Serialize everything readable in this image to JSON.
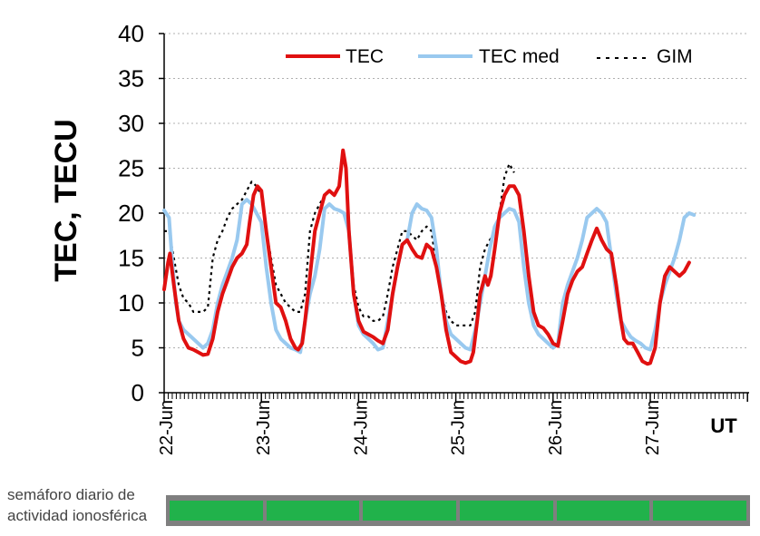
{
  "chart_data": {
    "type": "line",
    "ylabel": "TEC, TECU",
    "xlabel": "UT",
    "ylim": [
      0,
      40
    ],
    "yticks": [
      "0",
      "5",
      "10",
      "15",
      "20",
      "25",
      "30",
      "35",
      "40"
    ],
    "xlim_days": [
      0,
      6
    ],
    "date_labels": [
      "22-Jun",
      "23-Jun",
      "24-Jun",
      "25-Jun",
      "26-Jun",
      "27-Jun"
    ],
    "grid": "horizontal dashed",
    "legend": "top",
    "series": [
      {
        "name": "TEC",
        "color": "#e01010",
        "style": "solid-thick",
        "points": [
          [
            0.0,
            11.5
          ],
          [
            0.04,
            14.5
          ],
          [
            0.06,
            15.5
          ],
          [
            0.1,
            12
          ],
          [
            0.15,
            8
          ],
          [
            0.2,
            6
          ],
          [
            0.25,
            5
          ],
          [
            0.3,
            4.8
          ],
          [
            0.35,
            4.5
          ],
          [
            0.4,
            4.2
          ],
          [
            0.45,
            4.3
          ],
          [
            0.5,
            6
          ],
          [
            0.55,
            9
          ],
          [
            0.6,
            11
          ],
          [
            0.65,
            12.5
          ],
          [
            0.7,
            14
          ],
          [
            0.75,
            15
          ],
          [
            0.8,
            15.5
          ],
          [
            0.85,
            16.5
          ],
          [
            0.88,
            19
          ],
          [
            0.92,
            22
          ],
          [
            0.96,
            23
          ],
          [
            1.0,
            22.5
          ],
          [
            1.05,
            18
          ],
          [
            1.1,
            14
          ],
          [
            1.15,
            10
          ],
          [
            1.2,
            9.5
          ],
          [
            1.25,
            8
          ],
          [
            1.3,
            6
          ],
          [
            1.35,
            5
          ],
          [
            1.38,
            4.8
          ],
          [
            1.42,
            5.5
          ],
          [
            1.45,
            8
          ],
          [
            1.5,
            13
          ],
          [
            1.55,
            18
          ],
          [
            1.6,
            20
          ],
          [
            1.65,
            22
          ],
          [
            1.7,
            22.5
          ],
          [
            1.75,
            22
          ],
          [
            1.8,
            23
          ],
          [
            1.82,
            25
          ],
          [
            1.84,
            27
          ],
          [
            1.87,
            25
          ],
          [
            1.9,
            18
          ],
          [
            1.95,
            11
          ],
          [
            2.0,
            8
          ],
          [
            2.05,
            6.8
          ],
          [
            2.1,
            6.5
          ],
          [
            2.15,
            6.2
          ],
          [
            2.2,
            5.8
          ],
          [
            2.25,
            5.5
          ],
          [
            2.3,
            7
          ],
          [
            2.35,
            11
          ],
          [
            2.4,
            14
          ],
          [
            2.45,
            16.5
          ],
          [
            2.5,
            17
          ],
          [
            2.55,
            16
          ],
          [
            2.6,
            15.2
          ],
          [
            2.65,
            15
          ],
          [
            2.7,
            16.5
          ],
          [
            2.75,
            16
          ],
          [
            2.8,
            14
          ],
          [
            2.85,
            11
          ],
          [
            2.9,
            7
          ],
          [
            2.95,
            4.5
          ],
          [
            3.0,
            4
          ],
          [
            3.05,
            3.5
          ],
          [
            3.1,
            3.3
          ],
          [
            3.15,
            3.5
          ],
          [
            3.18,
            4.5
          ],
          [
            3.22,
            8
          ],
          [
            3.25,
            11
          ],
          [
            3.3,
            13
          ],
          [
            3.33,
            12
          ],
          [
            3.36,
            13
          ],
          [
            3.4,
            16
          ],
          [
            3.45,
            20
          ],
          [
            3.5,
            22
          ],
          [
            3.55,
            23
          ],
          [
            3.6,
            23
          ],
          [
            3.65,
            22
          ],
          [
            3.7,
            18
          ],
          [
            3.75,
            13
          ],
          [
            3.8,
            9
          ],
          [
            3.85,
            7.5
          ],
          [
            3.9,
            7.2
          ],
          [
            3.95,
            6.5
          ],
          [
            4.0,
            5.5
          ],
          [
            4.05,
            5.2
          ],
          [
            4.1,
            8
          ],
          [
            4.15,
            11
          ],
          [
            4.2,
            12.5
          ],
          [
            4.25,
            13.5
          ],
          [
            4.3,
            14
          ],
          [
            4.35,
            15.5
          ],
          [
            4.4,
            17
          ],
          [
            4.45,
            18.3
          ],
          [
            4.5,
            17
          ],
          [
            4.55,
            16
          ],
          [
            4.6,
            15.5
          ],
          [
            4.65,
            12
          ],
          [
            4.7,
            8
          ],
          [
            4.73,
            6
          ],
          [
            4.77,
            5.5
          ],
          [
            4.82,
            5.5
          ],
          [
            4.87,
            4.5
          ],
          [
            4.92,
            3.5
          ],
          [
            4.97,
            3.2
          ],
          [
            5.0,
            3.3
          ],
          [
            5.05,
            5
          ],
          [
            5.1,
            10
          ],
          [
            5.15,
            13
          ],
          [
            5.2,
            14
          ],
          [
            5.25,
            13.5
          ],
          [
            5.3,
            13
          ],
          [
            5.35,
            13.5
          ],
          [
            5.4,
            14.5
          ]
        ]
      },
      {
        "name": "TEC med",
        "color": "#99c9ef",
        "style": "solid-thick",
        "points": [
          [
            0.0,
            20.3
          ],
          [
            0.05,
            19.5
          ],
          [
            0.08,
            15
          ],
          [
            0.12,
            10
          ],
          [
            0.15,
            8
          ],
          [
            0.2,
            7
          ],
          [
            0.25,
            6.5
          ],
          [
            0.3,
            6
          ],
          [
            0.35,
            5.5
          ],
          [
            0.4,
            5
          ],
          [
            0.45,
            5.5
          ],
          [
            0.5,
            7
          ],
          [
            0.55,
            10
          ],
          [
            0.6,
            12
          ],
          [
            0.65,
            13.5
          ],
          [
            0.7,
            15
          ],
          [
            0.75,
            17
          ],
          [
            0.8,
            21
          ],
          [
            0.85,
            21.5
          ],
          [
            0.9,
            21
          ],
          [
            0.95,
            20
          ],
          [
            1.0,
            19
          ],
          [
            1.05,
            14
          ],
          [
            1.1,
            10
          ],
          [
            1.15,
            7
          ],
          [
            1.2,
            6
          ],
          [
            1.25,
            5.5
          ],
          [
            1.3,
            5
          ],
          [
            1.35,
            4.8
          ],
          [
            1.4,
            4.5
          ],
          [
            1.45,
            8
          ],
          [
            1.5,
            11
          ],
          [
            1.55,
            13
          ],
          [
            1.6,
            16
          ],
          [
            1.65,
            20.5
          ],
          [
            1.7,
            21
          ],
          [
            1.75,
            20.5
          ],
          [
            1.8,
            20.3
          ],
          [
            1.85,
            20
          ],
          [
            1.9,
            18
          ],
          [
            1.95,
            11
          ],
          [
            2.0,
            7.5
          ],
          [
            2.05,
            6.5
          ],
          [
            2.1,
            6
          ],
          [
            2.15,
            5.5
          ],
          [
            2.2,
            4.8
          ],
          [
            2.25,
            5
          ],
          [
            2.3,
            8
          ],
          [
            2.35,
            11
          ],
          [
            2.4,
            14
          ],
          [
            2.45,
            16.5
          ],
          [
            2.5,
            17
          ],
          [
            2.55,
            20
          ],
          [
            2.6,
            21
          ],
          [
            2.65,
            20.5
          ],
          [
            2.7,
            20.3
          ],
          [
            2.75,
            19.5
          ],
          [
            2.8,
            16
          ],
          [
            2.85,
            11
          ],
          [
            2.9,
            8
          ],
          [
            2.95,
            6.5
          ],
          [
            3.0,
            6
          ],
          [
            3.05,
            5.5
          ],
          [
            3.1,
            5
          ],
          [
            3.15,
            4.8
          ],
          [
            3.2,
            7
          ],
          [
            3.25,
            10
          ],
          [
            3.3,
            13
          ],
          [
            3.35,
            16
          ],
          [
            3.4,
            18.5
          ],
          [
            3.45,
            19.5
          ],
          [
            3.5,
            20
          ],
          [
            3.55,
            20.5
          ],
          [
            3.6,
            20.3
          ],
          [
            3.65,
            19
          ],
          [
            3.7,
            14
          ],
          [
            3.75,
            10
          ],
          [
            3.8,
            7.5
          ],
          [
            3.85,
            6.5
          ],
          [
            3.9,
            6
          ],
          [
            3.95,
            5.5
          ],
          [
            4.0,
            5
          ],
          [
            4.05,
            5.5
          ],
          [
            4.1,
            10
          ],
          [
            4.15,
            12
          ],
          [
            4.2,
            13.5
          ],
          [
            4.25,
            15
          ],
          [
            4.3,
            17
          ],
          [
            4.35,
            19.5
          ],
          [
            4.4,
            20
          ],
          [
            4.45,
            20.5
          ],
          [
            4.5,
            20
          ],
          [
            4.55,
            19
          ],
          [
            4.6,
            15
          ],
          [
            4.65,
            11
          ],
          [
            4.7,
            8
          ],
          [
            4.75,
            7
          ],
          [
            4.8,
            6.2
          ],
          [
            4.85,
            5.8
          ],
          [
            4.9,
            5.5
          ],
          [
            4.95,
            5
          ],
          [
            5.0,
            4.8
          ],
          [
            5.05,
            7
          ],
          [
            5.1,
            10
          ],
          [
            5.15,
            12
          ],
          [
            5.2,
            13.5
          ],
          [
            5.25,
            15
          ],
          [
            5.3,
            17
          ],
          [
            5.35,
            19.5
          ],
          [
            5.4,
            20
          ],
          [
            5.45,
            19.8
          ]
        ]
      },
      {
        "name": "GIM",
        "color": "#000000",
        "style": "dotted",
        "points": [
          [
            0.0,
            18
          ],
          [
            0.05,
            18
          ],
          [
            0.1,
            15
          ],
          [
            0.15,
            12
          ],
          [
            0.2,
            10.5
          ],
          [
            0.25,
            10
          ],
          [
            0.3,
            9
          ],
          [
            0.35,
            9
          ],
          [
            0.4,
            9
          ],
          [
            0.45,
            9.5
          ],
          [
            0.5,
            15
          ],
          [
            0.55,
            17
          ],
          [
            0.6,
            18
          ],
          [
            0.65,
            19.5
          ],
          [
            0.7,
            20.5
          ],
          [
            0.75,
            21
          ],
          [
            0.8,
            21.5
          ],
          [
            0.85,
            22.5
          ],
          [
            0.9,
            23.5
          ],
          [
            0.95,
            23
          ],
          [
            1.0,
            22
          ],
          [
            1.05,
            18
          ],
          [
            1.1,
            15
          ],
          [
            1.15,
            12
          ],
          [
            1.2,
            11
          ],
          [
            1.25,
            10
          ],
          [
            1.3,
            9.5
          ],
          [
            1.35,
            9
          ],
          [
            1.4,
            9
          ],
          [
            1.45,
            11
          ],
          [
            1.5,
            18
          ],
          [
            1.55,
            20
          ],
          [
            1.6,
            21
          ],
          [
            1.65,
            22
          ],
          [
            1.7,
            22.5
          ],
          [
            1.75,
            22
          ],
          [
            1.8,
            23
          ],
          [
            1.84,
            27
          ],
          [
            1.87,
            25
          ],
          [
            1.9,
            19
          ],
          [
            1.95,
            12
          ],
          [
            2.0,
            9.5
          ],
          [
            2.05,
            8.5
          ],
          [
            2.1,
            8.5
          ],
          [
            2.15,
            8
          ],
          [
            2.2,
            8
          ],
          [
            2.25,
            8.5
          ],
          [
            2.3,
            11
          ],
          [
            2.35,
            14
          ],
          [
            2.4,
            16
          ],
          [
            2.45,
            18
          ],
          [
            2.5,
            18
          ],
          [
            2.55,
            17.5
          ],
          [
            2.6,
            17
          ],
          [
            2.65,
            18
          ],
          [
            2.7,
            18.5
          ],
          [
            2.75,
            18
          ],
          [
            2.8,
            14
          ],
          [
            2.85,
            11
          ],
          [
            2.9,
            9
          ],
          [
            2.95,
            8
          ],
          [
            3.0,
            7.5
          ],
          [
            3.05,
            7.5
          ],
          [
            3.1,
            7.5
          ],
          [
            3.15,
            7.5
          ],
          [
            3.2,
            9
          ],
          [
            3.25,
            14
          ],
          [
            3.3,
            16
          ],
          [
            3.35,
            17
          ],
          [
            3.4,
            18
          ],
          [
            3.45,
            20
          ],
          [
            3.5,
            24
          ],
          [
            3.55,
            25.5
          ],
          [
            3.6,
            24.5
          ]
        ]
      }
    ],
    "semaphore": {
      "label": "semáforo diario de actividad ionosférica",
      "segments": [
        "green",
        "green",
        "green",
        "green",
        "green",
        "green"
      ],
      "bar_color": "#7f7f7f",
      "segment_color": "#21b24b"
    }
  }
}
